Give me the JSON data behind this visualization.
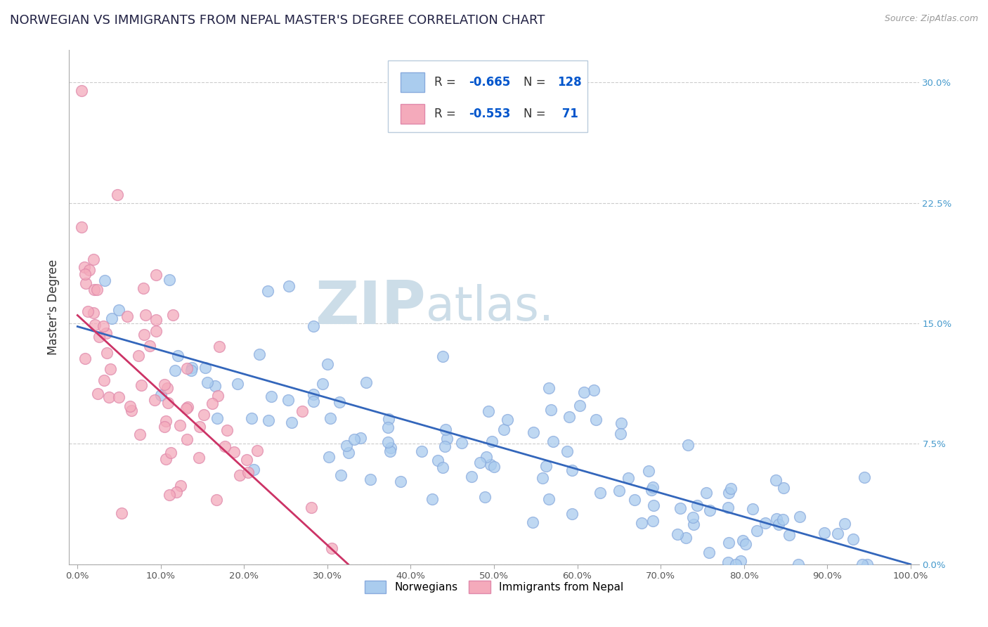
{
  "title": "NORWEGIAN VS IMMIGRANTS FROM NEPAL MASTER'S DEGREE CORRELATION CHART",
  "source": "Source: ZipAtlas.com",
  "ylabel": "Master's Degree",
  "xlim": [
    -0.01,
    1.01
  ],
  "ylim": [
    0.0,
    0.32
  ],
  "norwegian_R": -0.665,
  "norwegian_N": 128,
  "nepal_R": -0.553,
  "nepal_N": 71,
  "norwegian_color": "#aaccee",
  "nepal_color": "#f4aabb",
  "norwegian_edge": "#88aadd",
  "nepal_edge": "#e088aa",
  "norwegian_line_color": "#3366bb",
  "nepal_line_color": "#cc3366",
  "watermark_color": "#ccdde8",
  "title_color": "#222244",
  "title_fontsize": 13,
  "background_color": "#ffffff",
  "grid_color": "#cccccc",
  "legend_blue": "#0055cc",
  "legend_text": "#333333",
  "nor_line_x0": 0.0,
  "nor_line_y0": 0.148,
  "nor_line_x1": 1.0,
  "nor_line_y1": 0.0,
  "nep_line_x0": 0.0,
  "nep_line_y0": 0.155,
  "nep_line_x1": 0.325,
  "nep_line_y1": 0.0,
  "ytick_positions": [
    0.0,
    0.075,
    0.15,
    0.225,
    0.3
  ],
  "ytick_labels_right": [
    "0.0%",
    "7.5%",
    "15.0%",
    "22.5%",
    "30.0%"
  ],
  "xtick_positions": [
    0.0,
    0.1,
    0.2,
    0.3,
    0.4,
    0.5,
    0.6,
    0.7,
    0.8,
    0.9,
    1.0
  ],
  "xtick_labels": [
    "0.0%",
    "10.0%",
    "20.0%",
    "30.0%",
    "40.0%",
    "50.0%",
    "60.0%",
    "70.0%",
    "80.0%",
    "90.0%",
    "100.0%"
  ]
}
